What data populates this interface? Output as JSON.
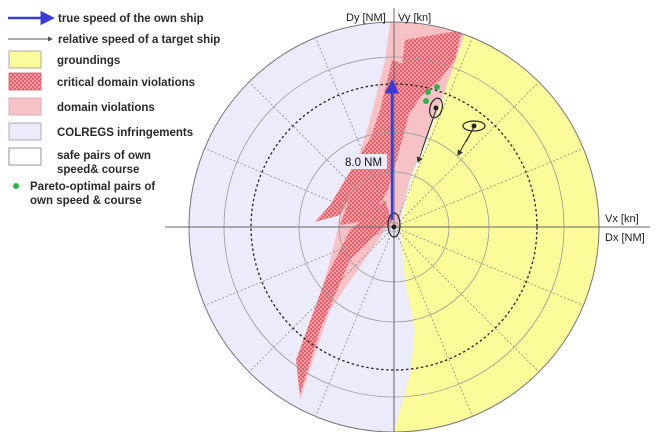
{
  "legend": {
    "items": [
      {
        "key": "true_speed",
        "lines": [
          "true speed of the own ship"
        ],
        "symbol": "arrow-thick",
        "color": "#3a3ad6"
      },
      {
        "key": "relative_speed",
        "lines": [
          "relative speed of a target ship"
        ],
        "symbol": "arrow-thin",
        "color": "#555555"
      },
      {
        "key": "groundings",
        "lines": [
          "groundings"
        ],
        "symbol": "box",
        "color": "#fbfb9a"
      },
      {
        "key": "critical",
        "lines": [
          "critical domain violations"
        ],
        "symbol": "box-hatched",
        "color": "#e8707a"
      },
      {
        "key": "domain",
        "lines": [
          "domain violations"
        ],
        "symbol": "box",
        "color": "#f7c2c6"
      },
      {
        "key": "colregs",
        "lines": [
          "COLREGS infringements"
        ],
        "symbol": "box",
        "color": "#ecebfb"
      },
      {
        "key": "safe",
        "lines": [
          "safe pairs of own",
          "speed& course"
        ],
        "symbol": "box",
        "color": "#ffffff"
      },
      {
        "key": "pareto",
        "lines": [
          "Pareto-optimal pairs of",
          "own speed & course"
        ],
        "symbol": "dot",
        "color": "#2fb24a"
      }
    ]
  },
  "axes": {
    "dy_label": "Dy [NM]",
    "vy_label": "Vy [kn]",
    "vx_label": "Vx [kn]",
    "dx_label": "Dx [NM]"
  },
  "annotations": {
    "range_label": "8.0 NM"
  },
  "colors": {
    "colregs": "#ecebfb",
    "groundings": "#fbfb9a",
    "domain": "#f7c2c6",
    "critical": "#e8707a",
    "grid": "#8a8a8a",
    "own_ship_vector": "#3a3ad6",
    "target_vector": "#333333",
    "pareto": "#2fb24a"
  }
}
